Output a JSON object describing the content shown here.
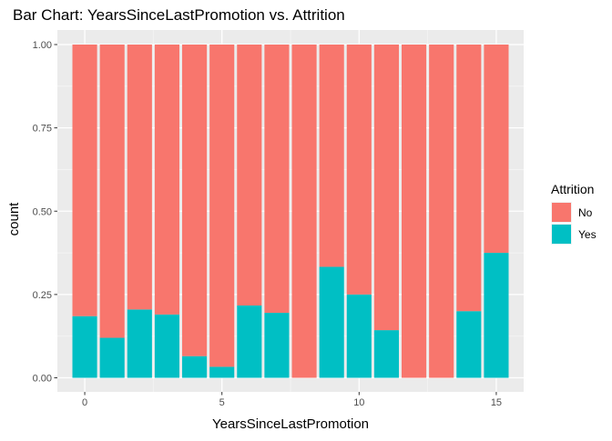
{
  "chart_data": {
    "type": "bar",
    "stacked": true,
    "title": "Bar Chart: YearsSinceLastPromotion vs. Attrition",
    "xlabel": "YearsSinceLastPromotion",
    "ylabel": "count",
    "x": [
      0,
      1,
      2,
      3,
      4,
      5,
      6,
      7,
      8,
      9,
      10,
      11,
      12,
      13,
      14,
      15
    ],
    "series": [
      {
        "name": "No",
        "color": "#F8766D",
        "values": [
          0.815,
          0.88,
          0.795,
          0.81,
          0.935,
          0.967,
          0.783,
          0.805,
          1.0,
          0.667,
          0.75,
          0.857,
          1.0,
          1.0,
          0.8,
          0.625
        ]
      },
      {
        "name": "Yes",
        "color": "#00BFC4",
        "values": [
          0.185,
          0.12,
          0.205,
          0.19,
          0.065,
          0.033,
          0.217,
          0.195,
          0.0,
          0.333,
          0.25,
          0.143,
          0.0,
          0.0,
          0.2,
          0.375
        ]
      }
    ],
    "xticks": [
      0,
      5,
      10,
      15
    ],
    "xtick_labels": [
      "0",
      "5",
      "10",
      "15"
    ],
    "yticks": [
      0,
      0.25,
      0.5,
      0.75,
      1
    ],
    "ytick_labels": [
      "0.00",
      "0.25",
      "0.50",
      "0.75",
      "1.00"
    ],
    "xlim": [
      -0.5,
      15.5
    ],
    "ylim": [
      0,
      1
    ],
    "grid": true,
    "legend": {
      "title": "Attrition",
      "placement": "right"
    }
  }
}
